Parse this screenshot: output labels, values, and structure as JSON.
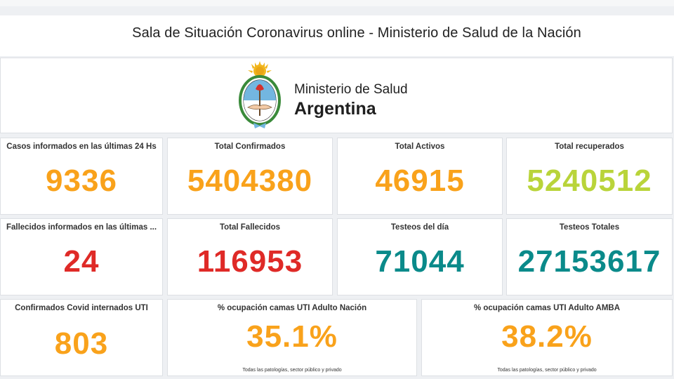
{
  "header": {
    "title": "Sala de Situación Coronavirus online - Ministerio de Salud de la Nación"
  },
  "logo": {
    "line1": "Ministerio de Salud",
    "line2": "Argentina",
    "icon": "argentina-coat-of-arms-icon"
  },
  "colors": {
    "orange": "#f9a21b",
    "lime": "#b9d43a",
    "red": "#df2a27",
    "teal": "#0a8a8a"
  },
  "kpis": [
    {
      "label": "Casos informados en las últimas 24 Hs",
      "value": "9336"
    },
    {
      "label": "Total Confirmados",
      "value": "5404380"
    },
    {
      "label": "Total Activos",
      "value": "46915"
    },
    {
      "label": "Total recuperados",
      "value": "5240512"
    },
    {
      "label": "Fallecidos informados en las últimas ...",
      "value": "24"
    },
    {
      "label": "Total Fallecidos",
      "value": "116953"
    },
    {
      "label": "Testeos del día",
      "value": "71044"
    },
    {
      "label": "Testeos Totales",
      "value": "27153617"
    },
    {
      "label": "Confirmados Covid internados UTI",
      "value": "803"
    },
    {
      "label": "% ocupación camas UTI Adulto Nación",
      "value": "35.1%",
      "sub": "Todas las patologías, sector público y privado"
    },
    {
      "label": "% ocupación camas UTI Adulto AMBA",
      "value": "38.2%",
      "sub": "Todas las patologías, sector público y privado"
    }
  ]
}
